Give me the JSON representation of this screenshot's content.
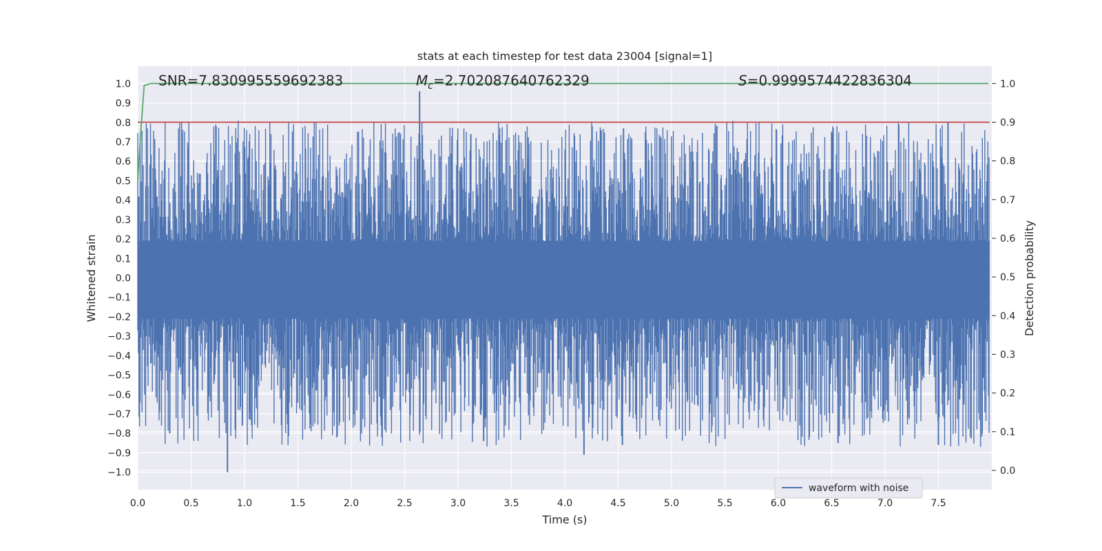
{
  "chart_data": {
    "type": "line",
    "title": "stats at each timestep for test data 23004 [signal=1]",
    "xlabel": "Time (s)",
    "ylabel": "Whitened strain",
    "y2label": "Detection probability",
    "xlim": [
      0.0,
      8.0
    ],
    "ylim": [
      -1.09,
      1.09
    ],
    "y2lim": [
      -0.05,
      1.045
    ],
    "x_ticks": [
      0.0,
      0.5,
      1.0,
      1.5,
      2.0,
      2.5,
      3.0,
      3.5,
      4.0,
      4.5,
      5.0,
      5.5,
      6.0,
      6.5,
      7.0,
      7.5
    ],
    "x_tick_labels": [
      "0.0",
      "0.5",
      "1.0",
      "1.5",
      "2.0",
      "2.5",
      "3.0",
      "3.5",
      "4.0",
      "4.5",
      "5.0",
      "5.5",
      "6.0",
      "6.5",
      "7.0",
      "7.5"
    ],
    "y_ticks": [
      1.0,
      0.9,
      0.8,
      0.7,
      0.6,
      0.5,
      0.4,
      0.3,
      0.2,
      0.1,
      0.0,
      -0.1,
      -0.2,
      -0.3,
      -0.4,
      -0.5,
      -0.6,
      -0.7,
      -0.8,
      -0.9,
      -1.0
    ],
    "y_tick_labels": [
      "1.0",
      "0.9",
      "0.8",
      "0.7",
      "0.6",
      "0.5",
      "0.4",
      "0.3",
      "0.2",
      "0.1",
      "0.0",
      "−0.1",
      "−0.2",
      "−0.3",
      "−0.4",
      "−0.5",
      "−0.6",
      "−0.7",
      "−0.8",
      "−0.9",
      "−1.0"
    ],
    "y2_ticks": [
      1.0,
      0.9,
      0.8,
      0.7,
      0.6,
      0.5,
      0.4,
      0.3,
      0.2,
      0.1,
      0.0
    ],
    "y2_tick_labels": [
      "1.0",
      "0.9",
      "0.8",
      "0.7",
      "0.6",
      "0.5",
      "0.4",
      "0.3",
      "0.2",
      "0.1",
      "0.0"
    ],
    "annotations": {
      "snr": "SNR=7.830995559692383",
      "mc_symbol": "M",
      "mc_sub": "c",
      "mc_value": "=2.702087640762329",
      "s_symbol": "S",
      "s_value": "=0.9999574422836304"
    },
    "series": [
      {
        "name": "waveform with noise",
        "axis": "left",
        "color": "#4c72b0",
        "x_range": [
          0.0,
          7.98
        ],
        "typical_upper_envelope": 0.35,
        "typical_lower_envelope": -0.45,
        "peaks": [
          {
            "x": 2.64,
            "y": 0.96
          },
          {
            "x": 7.59,
            "y": 0.8
          },
          {
            "x": 4.55,
            "y": 0.77
          },
          {
            "x": 4.34,
            "y": 0.76
          },
          {
            "x": 3.12,
            "y": 0.74
          }
        ],
        "troughs": [
          {
            "x": 0.84,
            "y": -1.0
          },
          {
            "x": 4.18,
            "y": -0.91
          },
          {
            "x": 7.5,
            "y": -0.86
          },
          {
            "x": 4.54,
            "y": -0.86
          },
          {
            "x": 3.24,
            "y": -0.84
          },
          {
            "x": 6.56,
            "y": -0.85
          },
          {
            "x": 0.3,
            "y": -0.8
          },
          {
            "x": 0.98,
            "y": -0.76
          }
        ]
      },
      {
        "name": "detection probability",
        "axis": "right",
        "color": "#55a868",
        "x": [
          0.0,
          0.03,
          0.06,
          0.12,
          0.5,
          1.0,
          2.0,
          3.0,
          4.0,
          5.0,
          6.0,
          7.0,
          7.97
        ],
        "values": [
          0.75,
          0.88,
          0.995,
          1.0,
          1.0,
          1.0,
          1.0,
          1.0,
          1.0,
          1.0,
          1.0,
          1.0,
          1.0
        ]
      },
      {
        "name": "threshold",
        "axis": "right",
        "color": "#c44e52",
        "x": [
          0.0,
          7.98
        ],
        "values": [
          0.9,
          0.9
        ]
      }
    ],
    "legend": {
      "position": "lower-right",
      "entries": [
        {
          "label": "waveform with noise",
          "color": "#4c72b0"
        }
      ]
    },
    "grid": true,
    "background": "#eaeaf2"
  }
}
